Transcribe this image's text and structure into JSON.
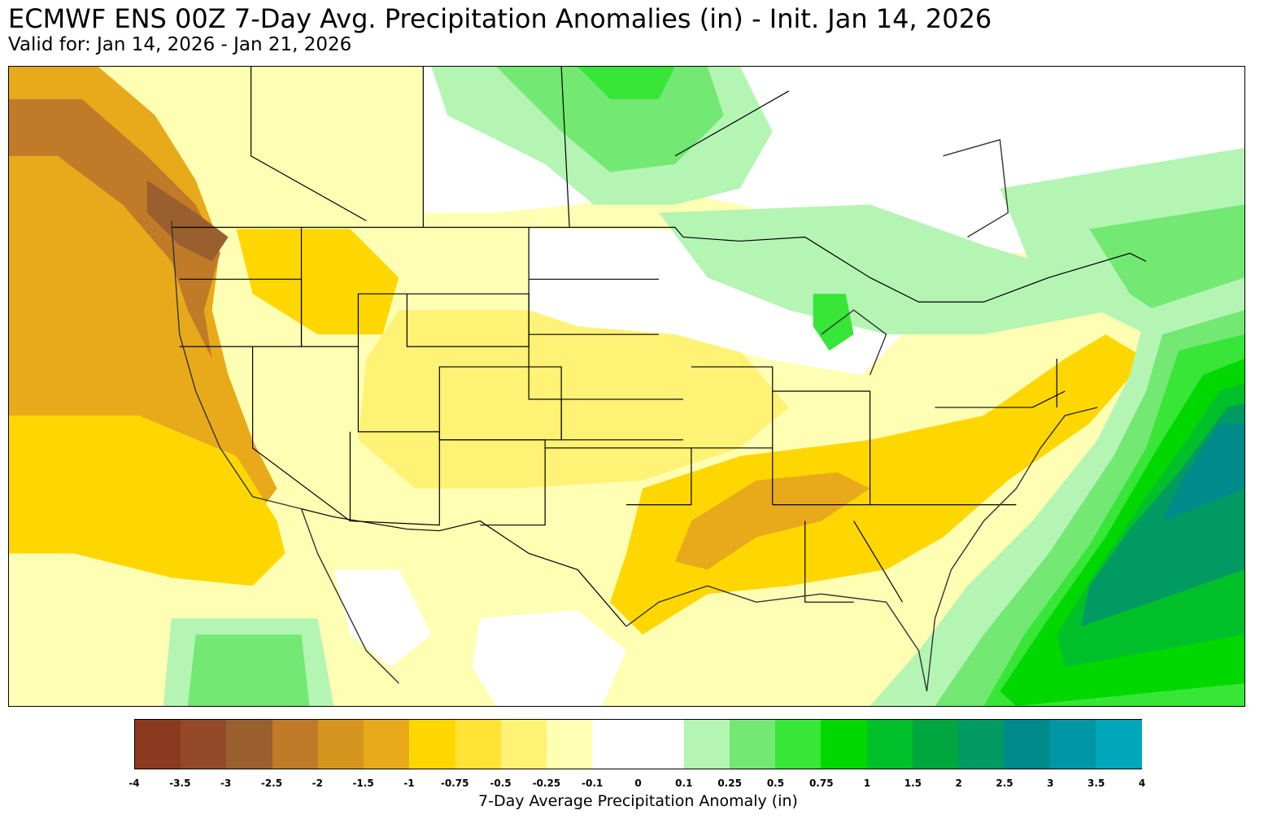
{
  "title": "ECMWF ENS 00Z 7-Day Avg. Precipitation Anomalies (in) - Init. Jan 14, 2026",
  "subtitle": "Valid for: Jan 14, 2026 - Jan 21, 2026",
  "colorbar": {
    "label": "7-Day Average Precipitation Anomaly (in)",
    "ticks": [
      "-4",
      "-3.5",
      "-3",
      "-2.5",
      "-2",
      "-1.5",
      "-1",
      "-0.75",
      "-0.5",
      "-0.25",
      "-0.1",
      "0",
      "0.1",
      "0.25",
      "0.5",
      "0.75",
      "1",
      "1.5",
      "2",
      "2.5",
      "3",
      "3.5",
      "4"
    ],
    "colors": [
      "#8B3A1F",
      "#93492A",
      "#9A5F2E",
      "#C07A28",
      "#D6951E",
      "#E8AA1A",
      "#FFD700",
      "#FFE234",
      "#FFF275",
      "#FFFFB4",
      "#FFFFFF",
      "#FFFFFF",
      "#B4F5B4",
      "#73E873",
      "#37E637",
      "#00D800",
      "#00C02A",
      "#00A63E",
      "#009A62",
      "#008A8C",
      "#0096A6",
      "#00A6BA"
    ]
  },
  "map_colors": {
    "ocean_dry": "#E8AA1A",
    "deep_dry": "#C07A28",
    "very_dry": "#9A5F2E",
    "moderate_dry": "#FFD700",
    "light_dry": "#FFF275",
    "faint_dry": "#FFFFB4",
    "neutral": "#FFFFFF",
    "light_wet": "#B4F5B4",
    "moderate_wet": "#73E873",
    "wet": "#37E637",
    "very_wet": "#00D800",
    "heavy_wet": "#00C02A",
    "extreme_wet": "#009A62",
    "max_wet": "#008A8C"
  }
}
